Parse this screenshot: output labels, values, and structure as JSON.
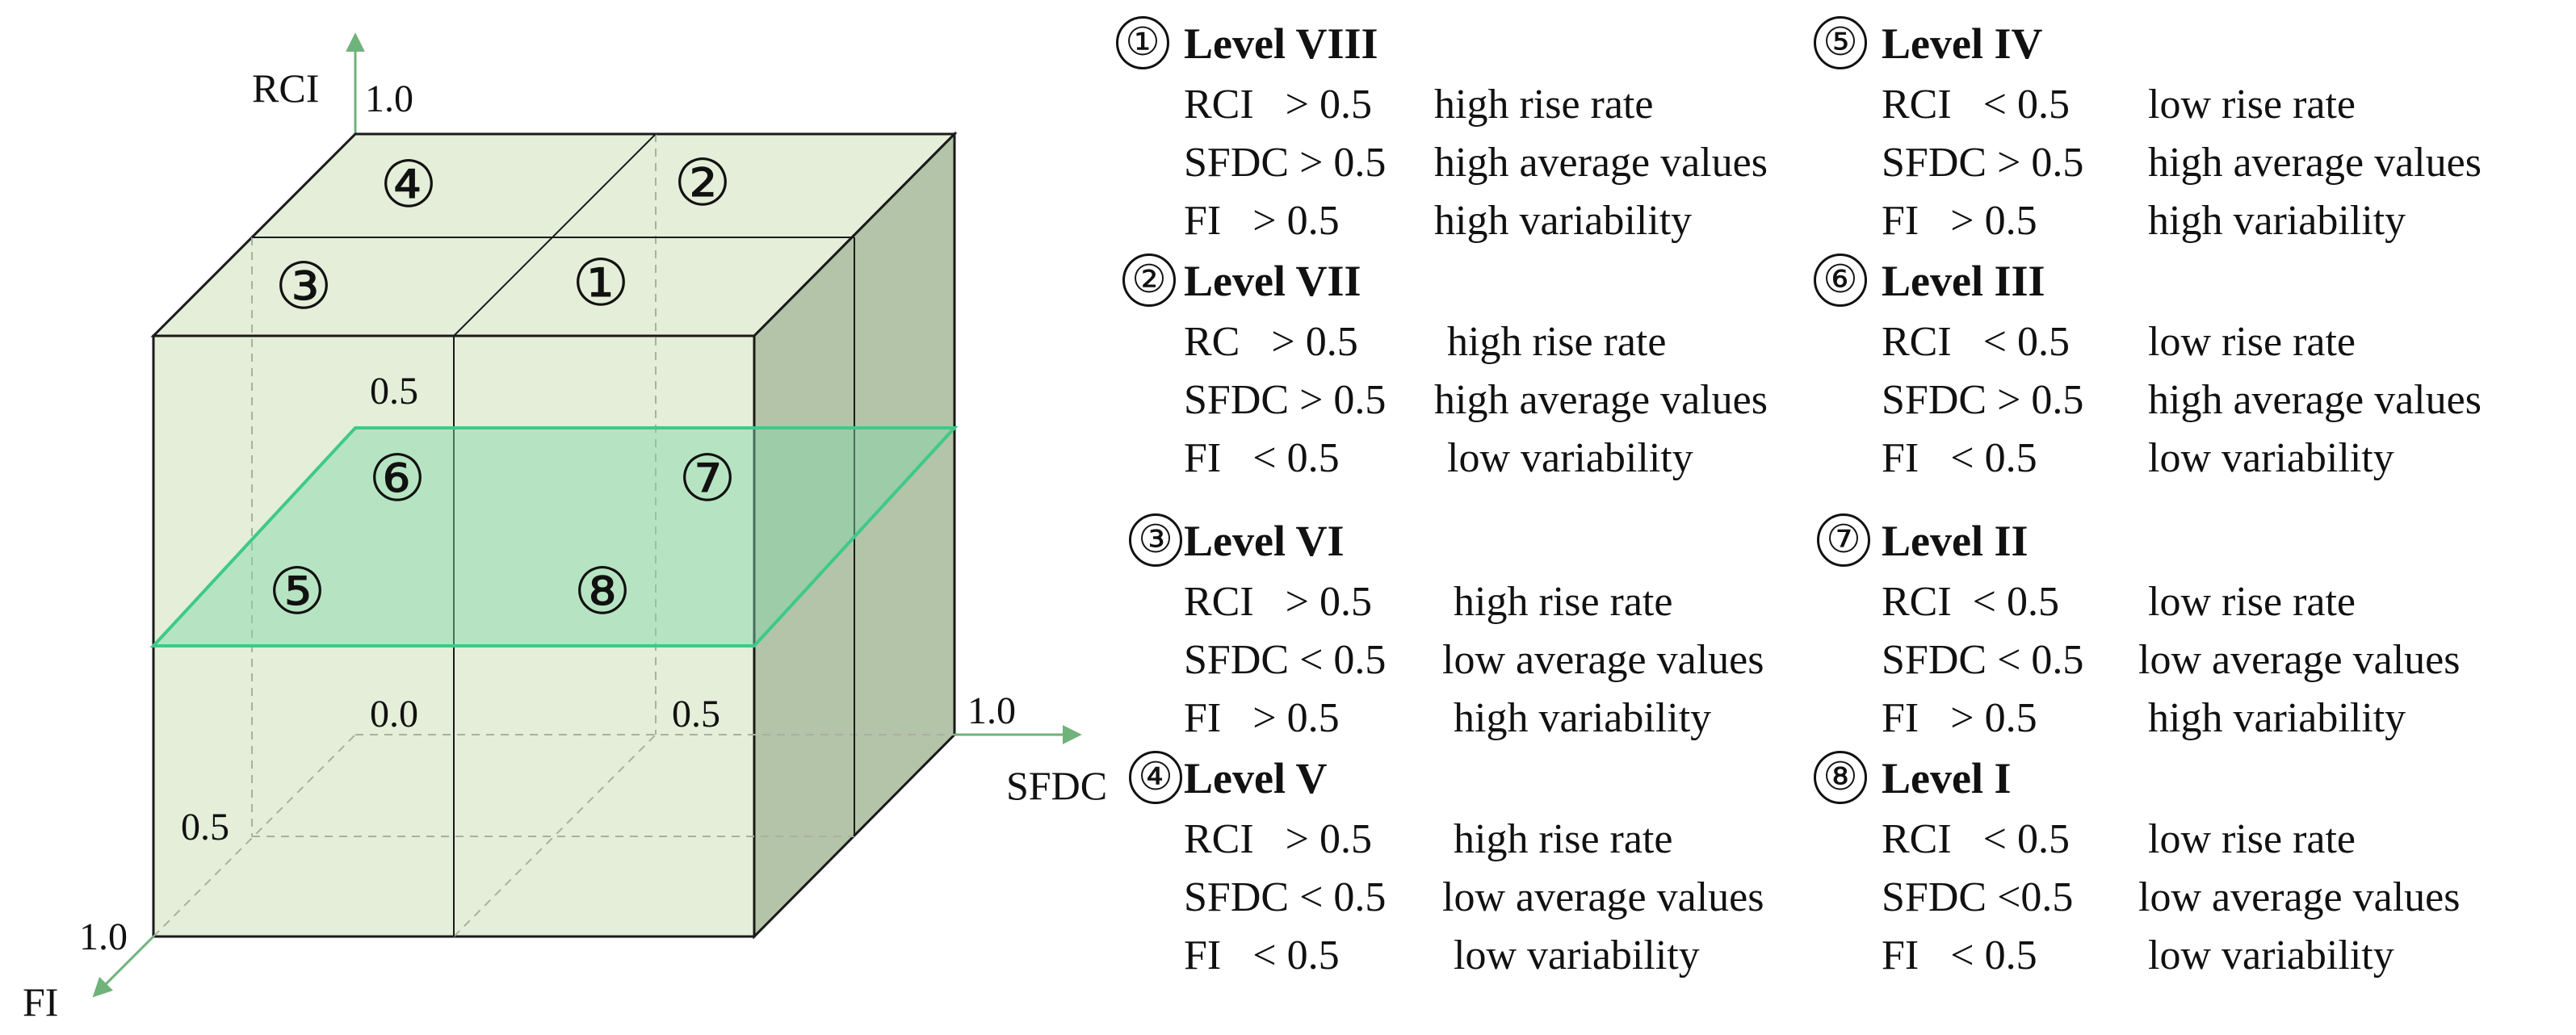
{
  "cube": {
    "axes": {
      "rci": {
        "label": "RCI",
        "max_label": "1.0",
        "mid_label": "0.5"
      },
      "sfdc": {
        "label": "SFDC",
        "max_label": "1.0",
        "mid_label": "0.5"
      },
      "fi": {
        "label": "FI",
        "max_label": "1.0",
        "mid_label": "0.5"
      },
      "origin_label": "0.0"
    },
    "region_labels": [
      "①",
      "②",
      "③",
      "④",
      "⑤",
      "⑥",
      "⑦",
      "⑧"
    ],
    "colors": {
      "cube_fill": "#e4eed8",
      "side_fill": "#b4c4a8",
      "axis": "#6fb27a",
      "plane": "#7fd6a8",
      "plane_edge": "#3ec98a",
      "edge": "#1a1a1a"
    }
  },
  "levels": [
    {
      "num": "①",
      "title": "Level VIII",
      "rows": [
        {
          "metric": "RCI   > 0.5",
          "desc": "high rise rate"
        },
        {
          "metric": "SFDC > 0.5",
          "desc": "high average values"
        },
        {
          "metric": "FI   > 0.5",
          "desc": "high variability"
        }
      ]
    },
    {
      "num": "②",
      "title": "Level VII",
      "rows": [
        {
          "metric": "RC   > 0.5",
          "desc": "high rise rate"
        },
        {
          "metric": "SFDC > 0.5",
          "desc": "high average values"
        },
        {
          "metric": "FI   < 0.5",
          "desc": "low variability"
        }
      ]
    },
    {
      "num": "③",
      "title": "Level VI",
      "rows": [
        {
          "metric": "RCI   > 0.5",
          "desc": "high rise rate"
        },
        {
          "metric": "SFDC < 0.5",
          "desc": "low average values"
        },
        {
          "metric": "FI   > 0.5",
          "desc": "high variability"
        }
      ]
    },
    {
      "num": "④",
      "title": "Level V",
      "rows": [
        {
          "metric": "RCI   > 0.5",
          "desc": "high rise rate"
        },
        {
          "metric": "SFDC < 0.5",
          "desc": "low average values"
        },
        {
          "metric": "FI   < 0.5",
          "desc": "low variability"
        }
      ]
    },
    {
      "num": "⑤",
      "title": "Level IV",
      "rows": [
        {
          "metric": "RCI   < 0.5",
          "desc": "low rise rate"
        },
        {
          "metric": "SFDC > 0.5",
          "desc": "high average values"
        },
        {
          "metric": "FI   > 0.5",
          "desc": "high variability"
        }
      ]
    },
    {
      "num": "⑥",
      "title": "Level III",
      "rows": [
        {
          "metric": "RCI   < 0.5",
          "desc": "low rise rate"
        },
        {
          "metric": "SFDC > 0.5",
          "desc": "high average values"
        },
        {
          "metric": "FI   < 0.5",
          "desc": "low variability"
        }
      ]
    },
    {
      "num": "⑦",
      "title": "Level II",
      "rows": [
        {
          "metric": "RCI  < 0.5",
          "desc": "low rise rate"
        },
        {
          "metric": "SFDC < 0.5",
          "desc": "low average values"
        },
        {
          "metric": "FI   > 0.5",
          "desc": "high variability"
        }
      ]
    },
    {
      "num": "⑧",
      "title": "Level I",
      "rows": [
        {
          "metric": "RCI   < 0.5",
          "desc": "low rise rate"
        },
        {
          "metric": "SFDC <0.5",
          "desc": "low average values"
        },
        {
          "metric": "FI   < 0.5",
          "desc": "low variability"
        }
      ]
    }
  ]
}
